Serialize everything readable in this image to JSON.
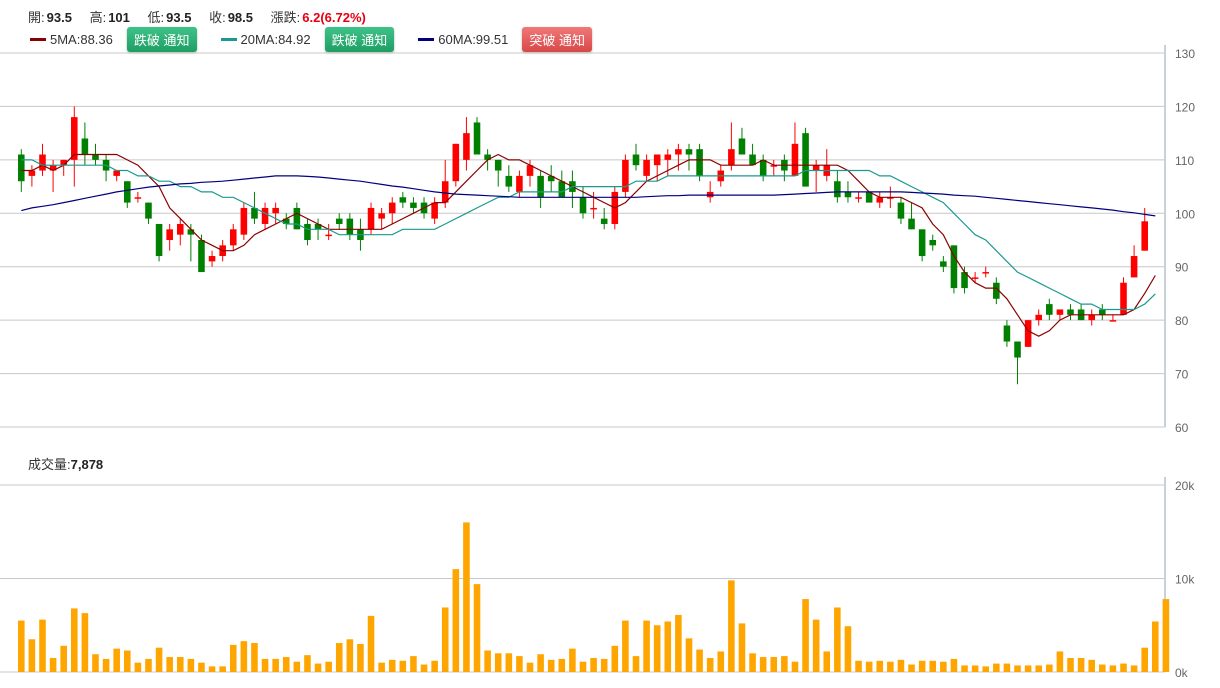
{
  "header": {
    "open_label": "開:",
    "open": "93.5",
    "high_label": "高:",
    "high": "101",
    "low_label": "低:",
    "low": "93.5",
    "close_label": "收:",
    "close": "98.5",
    "change_label": "漲跌:",
    "change": "6.2(6.72%)"
  },
  "ma": [
    {
      "label": "5MA:88.36",
      "color": "#8b0000",
      "button": "跌破 通知",
      "button_style": "green"
    },
    {
      "label": "20MA:84.92",
      "color": "#1a9a8e",
      "button": "跌破 通知",
      "button_style": "green"
    },
    {
      "label": "60MA:99.51",
      "color": "#000080",
      "button": "突破 通知",
      "button_style": "red"
    }
  ],
  "volume": {
    "label": "成交量:",
    "value": "7,878"
  },
  "chart_data": [
    {
      "type": "candlestick",
      "y_axis_side": "right",
      "ylim": [
        60,
        130
      ],
      "y_ticks": [
        60,
        70,
        80,
        90,
        100,
        110,
        120,
        130
      ],
      "grid": true,
      "up_color": "#ff0000",
      "down_color": "#008000",
      "candles": [
        [
          111,
          112,
          104,
          106
        ],
        [
          107,
          109,
          105,
          108
        ],
        [
          108,
          113,
          107,
          111
        ],
        [
          108,
          110,
          104,
          109
        ],
        [
          109,
          110,
          107,
          110
        ],
        [
          110,
          120,
          105,
          118
        ],
        [
          114,
          117,
          109,
          111
        ],
        [
          111,
          113,
          109,
          110
        ],
        [
          110,
          111,
          106,
          108
        ],
        [
          107,
          108,
          106,
          108
        ],
        [
          106,
          106,
          101,
          102
        ],
        [
          103,
          104,
          102,
          103
        ],
        [
          102,
          102,
          98,
          99
        ],
        [
          98,
          98,
          91,
          92
        ],
        [
          95,
          98,
          93,
          97
        ],
        [
          96,
          99,
          94,
          98
        ],
        [
          97,
          98,
          91,
          96
        ],
        [
          95,
          96,
          89,
          89
        ],
        [
          91,
          93,
          90,
          92
        ],
        [
          92,
          95,
          91,
          94
        ],
        [
          94,
          98,
          93,
          97
        ],
        [
          96,
          102,
          95,
          101
        ],
        [
          101,
          104,
          98,
          99
        ],
        [
          98,
          102,
          97,
          101
        ],
        [
          100,
          102,
          98,
          101
        ],
        [
          99,
          100,
          97,
          98
        ],
        [
          101,
          102,
          97,
          97
        ],
        [
          98,
          99,
          94,
          95
        ],
        [
          98,
          99,
          95,
          97
        ],
        [
          96,
          98,
          95,
          96
        ],
        [
          99,
          100,
          97,
          98
        ],
        [
          99,
          100,
          95,
          96
        ],
        [
          97,
          99,
          93,
          95
        ],
        [
          97,
          102,
          96,
          101
        ],
        [
          99,
          101,
          97,
          100
        ],
        [
          100,
          103,
          98,
          102
        ],
        [
          103,
          104,
          101,
          102
        ],
        [
          102,
          103,
          100,
          101
        ],
        [
          102,
          103,
          99,
          100
        ],
        [
          99,
          103,
          98,
          102
        ],
        [
          102,
          110,
          101,
          106
        ],
        [
          106,
          113,
          105,
          113
        ],
        [
          110,
          118,
          108,
          115
        ],
        [
          117,
          118,
          111,
          111
        ],
        [
          111,
          112,
          108,
          110
        ],
        [
          110,
          110,
          105,
          108
        ],
        [
          107,
          109,
          104,
          105
        ],
        [
          104,
          108,
          103,
          107
        ],
        [
          107,
          110,
          105,
          109
        ],
        [
          107,
          108,
          101,
          103
        ],
        [
          107,
          109,
          104,
          106
        ],
        [
          106,
          108,
          103,
          103
        ],
        [
          106,
          108,
          101,
          104
        ],
        [
          103,
          105,
          99,
          100
        ],
        [
          101,
          104,
          99,
          101
        ],
        [
          99,
          101,
          97,
          98
        ],
        [
          98,
          105,
          97,
          104
        ],
        [
          104,
          111,
          103,
          110
        ],
        [
          111,
          113,
          108,
          109
        ],
        [
          107,
          111,
          106,
          110
        ],
        [
          109,
          111,
          106,
          111
        ],
        [
          110,
          112,
          107,
          111
        ],
        [
          111,
          113,
          108,
          112
        ],
        [
          112,
          113,
          108,
          111
        ],
        [
          112,
          113,
          106,
          107
        ],
        [
          103,
          106,
          102,
          104
        ],
        [
          106,
          109,
          105,
          108
        ],
        [
          109,
          117,
          108,
          112
        ],
        [
          114,
          116,
          111,
          111
        ],
        [
          111,
          113,
          109,
          109
        ],
        [
          110,
          111,
          106,
          107
        ],
        [
          109,
          110,
          107,
          109
        ],
        [
          110,
          111,
          106,
          108
        ],
        [
          107,
          117,
          107,
          113
        ],
        [
          115,
          116,
          105,
          105
        ],
        [
          108,
          110,
          104,
          109
        ],
        [
          107,
          112,
          106,
          109
        ],
        [
          106,
          108,
          102,
          103
        ],
        [
          104,
          106,
          102,
          103
        ],
        [
          103,
          104,
          102,
          103
        ],
        [
          104,
          104,
          102,
          102
        ],
        [
          102,
          104,
          101,
          103
        ],
        [
          103,
          105,
          101,
          103
        ],
        [
          102,
          103,
          98,
          99
        ],
        [
          99,
          102,
          97,
          97
        ],
        [
          97,
          97,
          91,
          92
        ],
        [
          95,
          96,
          93,
          94
        ],
        [
          91,
          92,
          89,
          90
        ],
        [
          94,
          94,
          85,
          86
        ],
        [
          89,
          90,
          85,
          86
        ],
        [
          88,
          89,
          87,
          88
        ],
        [
          89,
          90,
          88,
          89
        ],
        [
          87,
          88,
          83,
          84
        ],
        [
          79,
          80,
          75,
          76
        ],
        [
          76,
          76,
          68,
          73
        ],
        [
          75,
          80,
          75,
          80
        ],
        [
          80,
          82,
          79,
          81
        ],
        [
          83,
          84,
          80,
          81
        ],
        [
          81,
          82,
          80,
          82
        ],
        [
          82,
          83,
          80,
          81
        ],
        [
          82,
          83,
          80,
          80
        ],
        [
          80,
          82,
          79,
          81
        ],
        [
          82,
          83,
          80,
          81
        ],
        [
          80,
          81,
          80,
          80
        ],
        [
          81,
          88,
          81,
          87
        ],
        [
          88,
          94,
          88,
          92
        ],
        [
          93,
          101,
          93,
          98.5
        ]
      ],
      "ma_series": [
        {
          "period": 5,
          "color": "#8b0000",
          "values": [
            108,
            108,
            109,
            108,
            109,
            111,
            111,
            111,
            111,
            111,
            110,
            109,
            107,
            105,
            101,
            99,
            97,
            95,
            94,
            93,
            93,
            94,
            96,
            97,
            98,
            99,
            100,
            99,
            98,
            97,
            97,
            97,
            97,
            97,
            97,
            98,
            99,
            100,
            101,
            102,
            102,
            104,
            106,
            108,
            110,
            111,
            110,
            110,
            109,
            108,
            107,
            106,
            105,
            104,
            103,
            102,
            101,
            102,
            104,
            106,
            107,
            108,
            109,
            110,
            110,
            110,
            109,
            109,
            109,
            109,
            110,
            109,
            109,
            109,
            109,
            109,
            109,
            109,
            108,
            106,
            104,
            103,
            103,
            103,
            102,
            101,
            98,
            96,
            92,
            89,
            87,
            86,
            86,
            84,
            81,
            78,
            77,
            78,
            80,
            81,
            81,
            81,
            81,
            81,
            81,
            82,
            85,
            88.36
          ]
        },
        {
          "period": 20,
          "color": "#1a9a8e",
          "values": [
            110,
            110,
            109,
            109,
            109,
            109,
            109,
            109,
            109,
            108,
            108,
            107,
            107,
            106,
            106,
            105,
            105,
            104,
            104,
            103,
            103,
            102,
            101,
            100,
            99,
            98,
            98,
            97,
            97,
            97,
            96,
            96,
            96,
            96,
            96,
            96,
            97,
            97,
            97,
            97,
            98,
            99,
            100,
            101,
            102,
            103,
            103,
            104,
            104,
            104,
            104,
            104,
            105,
            105,
            105,
            105,
            105,
            105,
            106,
            106,
            106,
            107,
            107,
            107,
            107,
            107,
            107,
            107,
            107,
            107,
            107,
            107,
            107,
            107,
            108,
            108,
            108,
            108,
            108,
            108,
            108,
            107,
            107,
            106,
            105,
            104,
            103,
            102,
            100,
            98,
            96,
            95,
            93,
            91,
            89,
            88,
            87,
            86,
            85,
            84,
            83,
            83,
            82,
            82,
            82,
            82,
            83,
            84.92
          ]
        },
        {
          "period": 60,
          "color": "#000080",
          "values": [
            100.5,
            101,
            101.3,
            101.6,
            102,
            102.4,
            102.8,
            103.2,
            103.6,
            104,
            104.3,
            104.6,
            104.9,
            105.1,
            105.3,
            105.5,
            105.6,
            105.8,
            105.9,
            106,
            106.2,
            106.4,
            106.6,
            106.8,
            107,
            107,
            107,
            106.9,
            106.8,
            106.6,
            106.4,
            106.2,
            106,
            105.7,
            105.4,
            105.1,
            104.9,
            104.6,
            104.3,
            104,
            103.8,
            103.6,
            103.5,
            103.4,
            103.3,
            103.2,
            103.1,
            103,
            103,
            103,
            103,
            103,
            103,
            103,
            103,
            103,
            103,
            103,
            103,
            103.1,
            103.2,
            103.3,
            103.3,
            103.4,
            103.4,
            103.4,
            103.4,
            103.4,
            103.4,
            103.4,
            103.4,
            103.4,
            103.5,
            103.6,
            103.7,
            103.8,
            103.9,
            104,
            104,
            104,
            104,
            104,
            104,
            104,
            103.9,
            103.8,
            103.7,
            103.6,
            103.4,
            103.3,
            103.2,
            103,
            102.8,
            102.6,
            102.4,
            102.2,
            102,
            101.8,
            101.6,
            101.4,
            101.2,
            101,
            100.8,
            100.6,
            100.3,
            100.1,
            99.8,
            99.51
          ]
        }
      ]
    },
    {
      "type": "bar",
      "color": "#ffa500",
      "y_axis_side": "right",
      "ylim": [
        0,
        20000
      ],
      "y_ticks": [
        "0k",
        "10k",
        "20k"
      ],
      "grid": true,
      "values": [
        5500,
        3500,
        5600,
        1500,
        2800,
        6800,
        6300,
        1900,
        1400,
        2500,
        2300,
        1000,
        1400,
        2600,
        1600,
        1600,
        1400,
        1000,
        600,
        600,
        2900,
        3300,
        3100,
        1400,
        1400,
        1600,
        1100,
        1800,
        900,
        1100,
        3100,
        3500,
        3000,
        6000,
        1000,
        1300,
        1200,
        1700,
        800,
        1200,
        6900,
        11000,
        16000,
        9400,
        2300,
        2000,
        2000,
        1700,
        1000,
        1900,
        1300,
        1400,
        2500,
        1100,
        1500,
        1400,
        2800,
        5500,
        1700,
        5500,
        5000,
        5400,
        6100,
        3600,
        2400,
        1500,
        2200,
        9800,
        5200,
        2000,
        1600,
        1600,
        1700,
        1100,
        7800,
        5600,
        2200,
        6900,
        4900,
        1200,
        1100,
        1200,
        1100,
        1300,
        800,
        1200,
        1200,
        1100,
        1400,
        700,
        700,
        600,
        900,
        900,
        700,
        700,
        700,
        800,
        2200,
        1500,
        1500,
        1300,
        800,
        700,
        900,
        700,
        2600,
        5400,
        7800
      ]
    }
  ]
}
